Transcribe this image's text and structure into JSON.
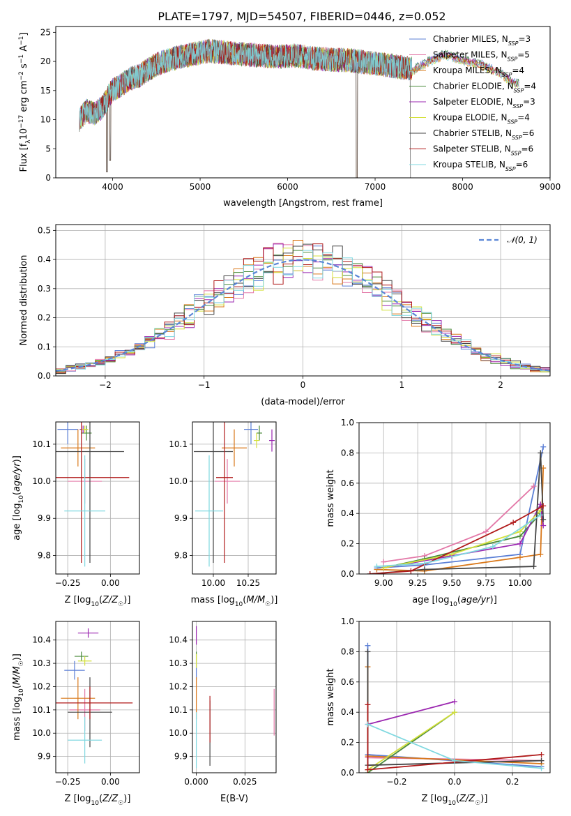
{
  "figure_title": "PLATE=1797, MJD=54507, FIBERID=0446, z=0.052",
  "colors": {
    "chabrier_miles": "#5b7fd6",
    "salpeter_miles": "#e377a7",
    "kroupa_miles": "#d9781a",
    "chabrier_elodie": "#4a8a3a",
    "salpeter_elodie": "#9b27b0",
    "kroupa_elodie": "#d4e03a",
    "chabrier_stelib": "#444444",
    "salpeter_stelib": "#b01a1a",
    "kroupa_stelib": "#7fd8e0",
    "normal_curve": "#5a86d6",
    "grid": "#b0b0b0"
  },
  "chart_data": [
    {
      "id": "spectrum",
      "type": "line",
      "xlabel": "wavelength [Angstrom, rest frame]",
      "ylabel": "Flux [f_λ10^-17 erg cm^-2 s^-1 A^-1]",
      "xlim": [
        3350,
        9000
      ],
      "ylim": [
        0,
        26
      ],
      "xticks": [
        4000,
        5000,
        6000,
        7000,
        8000,
        9000
      ],
      "yticks": [
        0,
        5,
        10,
        15,
        20,
        25
      ],
      "grid": false,
      "legend_position": "upper right",
      "legend": [
        {
          "label": "Chabrier MILES, N_SSP=3",
          "color_key": "chabrier_miles"
        },
        {
          "label": "Salpeter MILES, N_SSP=5",
          "color_key": "salpeter_miles"
        },
        {
          "label": "Kroupa MILES, N_SSP=4",
          "color_key": "kroupa_miles"
        },
        {
          "label": "Chabrier ELODIE, N_SSP=4",
          "color_key": "chabrier_elodie"
        },
        {
          "label": "Salpeter ELODIE, N_SSP=3",
          "color_key": "salpeter_elodie"
        },
        {
          "label": "Kroupa ELODIE, N_SSP=4",
          "color_key": "kroupa_elodie"
        },
        {
          "label": "Chabrier STELIB, N_SSP=6",
          "color_key": "chabrier_stelib"
        },
        {
          "label": "Salpeter STELIB, N_SSP=6",
          "color_key": "salpeter_stelib"
        },
        {
          "label": "Kroupa STELIB, N_SSP=6",
          "color_key": "kroupa_stelib"
        }
      ],
      "continuum": {
        "x": [
          3620,
          3700,
          3800,
          3900,
          3950,
          4000,
          4100,
          4200,
          4300,
          4400,
          4500,
          4700,
          4900,
          5100,
          5300,
          5500,
          5700,
          5900,
          6100,
          6300,
          6500,
          6700,
          6900,
          7100,
          7300,
          7400
        ],
        "y": [
          10,
          11.5,
          11,
          12.5,
          14,
          15,
          16,
          17,
          17.5,
          18.5,
          19.5,
          20.5,
          21.2,
          21.8,
          21.5,
          21.2,
          21,
          20.8,
          21,
          20.5,
          20.3,
          20.2,
          19.8,
          19.4,
          19,
          18.8
        ]
      },
      "dips": [
        {
          "x": 3935,
          "y": 1
        },
        {
          "x": 3970,
          "y": 3
        },
        {
          "x": 6790,
          "y": 0
        }
      ],
      "models_end": {
        "x": [
          7400,
          7600,
          7800,
          8000,
          8200,
          8400,
          8600
        ],
        "y": [
          18.5,
          20.2,
          21.5,
          20.5,
          19.8,
          18.5,
          16.5
        ]
      }
    },
    {
      "id": "residual_hist",
      "type": "histogram",
      "xlabel": "(data-model)/error",
      "ylabel": "Normed distribution",
      "xlim": [
        -2.5,
        2.5
      ],
      "ylim": [
        0,
        0.52
      ],
      "xticks": [
        -2,
        -1,
        0,
        1,
        2
      ],
      "yticks": [
        0.0,
        0.1,
        0.2,
        0.3,
        0.4,
        0.5
      ],
      "grid": true,
      "legend_position": "upper right",
      "legend": [
        {
          "label": "𝒩(0, 1)",
          "color_key": "normal_curve",
          "style": "dashed"
        }
      ],
      "bin_width": 0.1,
      "bins_start": -2.5,
      "bins_count": 50
    },
    {
      "id": "age_vs_Z",
      "type": "errorbar",
      "xlabel": "Z [log10(Z/Z☉)]",
      "ylabel": "age [log10(age/yr)]",
      "xlim": [
        -0.32,
        0.17
      ],
      "ylim": [
        9.75,
        10.16
      ],
      "xticks": [
        -0.25,
        0.0
      ],
      "yticks": [
        9.8,
        9.9,
        10.0,
        10.1
      ],
      "grid": true,
      "points": [
        {
          "color_key": "chabrier_miles",
          "x": -0.25,
          "y": 10.14,
          "xerr": 0.06,
          "yerr": 0.04
        },
        {
          "color_key": "salpeter_miles",
          "x": -0.15,
          "y": 10.0,
          "xerr": 0.1,
          "yerr": 0.06
        },
        {
          "color_key": "kroupa_miles",
          "x": -0.19,
          "y": 10.09,
          "xerr": 0.1,
          "yerr": 0.05
        },
        {
          "color_key": "chabrier_elodie",
          "x": -0.14,
          "y": 10.13,
          "xerr": 0.03,
          "yerr": 0.02
        },
        {
          "color_key": "salpeter_elodie",
          "x": -0.16,
          "y": 10.14,
          "xerr": 0.02,
          "yerr": 0.01
        },
        {
          "color_key": "kroupa_elodie",
          "x": -0.15,
          "y": 10.14,
          "xerr": 0.02,
          "yerr": 0.01
        },
        {
          "color_key": "chabrier_stelib",
          "x": -0.12,
          "y": 10.08,
          "xerr": 0.2,
          "yerr": 0.3
        },
        {
          "color_key": "salpeter_stelib",
          "x": -0.17,
          "y": 10.01,
          "xerr": 0.28,
          "yerr": 0.23
        },
        {
          "color_key": "kroupa_stelib",
          "x": -0.15,
          "y": 9.92,
          "xerr": 0.12,
          "yerr": 0.15
        }
      ]
    },
    {
      "id": "age_vs_mass",
      "type": "errorbar",
      "xlabel": "mass [log10(M/M☉)]",
      "ylabel": "",
      "xlim": [
        9.85,
        10.45
      ],
      "ylim": [
        9.75,
        10.16
      ],
      "xticks": [
        10.0,
        10.25
      ],
      "yticks": [
        9.8,
        9.9,
        10.0,
        10.1
      ],
      "grid": true,
      "points": [
        {
          "color_key": "chabrier_miles",
          "x": 10.27,
          "y": 10.14,
          "xerr": 0.05,
          "yerr": 0.04
        },
        {
          "color_key": "salpeter_miles",
          "x": 10.1,
          "y": 10.0,
          "xerr": 0.09,
          "yerr": 0.06
        },
        {
          "color_key": "kroupa_miles",
          "x": 10.15,
          "y": 10.09,
          "xerr": 0.09,
          "yerr": 0.05
        },
        {
          "color_key": "chabrier_elodie",
          "x": 10.33,
          "y": 10.13,
          "xerr": 0.02,
          "yerr": 0.02
        },
        {
          "color_key": "salpeter_elodie",
          "x": 10.42,
          "y": 10.11,
          "xerr": 0.02,
          "yerr": 0.03
        },
        {
          "color_key": "kroupa_elodie",
          "x": 10.31,
          "y": 10.11,
          "xerr": 0.02,
          "yerr": 0.02
        },
        {
          "color_key": "chabrier_stelib",
          "x": 10.0,
          "y": 10.08,
          "xerr": 0.14,
          "yerr": 0.3
        },
        {
          "color_key": "salpeter_stelib",
          "x": 10.08,
          "y": 10.01,
          "xerr": 0.06,
          "yerr": 0.23
        },
        {
          "color_key": "kroupa_stelib",
          "x": 9.97,
          "y": 9.92,
          "xerr": 0.1,
          "yerr": 0.15
        }
      ]
    },
    {
      "id": "weight_vs_age",
      "type": "line",
      "xlabel": "age [log10(age/yr)]",
      "ylabel": "mass weight",
      "xlim": [
        8.82,
        10.22
      ],
      "ylim": [
        0,
        1.0
      ],
      "xticks": [
        9.0,
        9.25,
        9.5,
        9.75,
        10.0
      ],
      "yticks": [
        0.0,
        0.2,
        0.4,
        0.6,
        0.8,
        1.0
      ],
      "grid": true,
      "series": [
        {
          "color_key": "chabrier_miles",
          "x": [
            8.95,
            9.3,
            10.0,
            10.17
          ],
          "y": [
            0.04,
            0.06,
            0.13,
            0.84
          ]
        },
        {
          "color_key": "salpeter_miles",
          "x": [
            9.0,
            9.3,
            9.75,
            10.1
          ],
          "y": [
            0.08,
            0.12,
            0.28,
            0.58
          ]
        },
        {
          "color_key": "kroupa_miles",
          "x": [
            8.95,
            9.3,
            10.0,
            10.15,
            10.17
          ],
          "y": [
            0.03,
            0.02,
            0.11,
            0.13,
            0.7
          ]
        },
        {
          "color_key": "chabrier_elodie",
          "x": [
            9.0,
            9.3,
            10.0,
            10.15
          ],
          "y": [
            0.04,
            0.1,
            0.25,
            0.4
          ]
        },
        {
          "color_key": "salpeter_elodie",
          "x": [
            9.0,
            9.5,
            10.0,
            10.15,
            10.17
          ],
          "y": [
            0.04,
            0.12,
            0.2,
            0.46,
            0.32
          ]
        },
        {
          "color_key": "kroupa_elodie",
          "x": [
            9.0,
            9.5,
            10.0,
            10.15
          ],
          "y": [
            0.04,
            0.13,
            0.28,
            0.42
          ]
        },
        {
          "color_key": "chabrier_stelib",
          "x": [
            8.9,
            9.3,
            10.1,
            10.15,
            10.17
          ],
          "y": [
            0.0,
            0.03,
            0.05,
            0.8,
            0.36
          ]
        },
        {
          "color_key": "salpeter_stelib",
          "x": [
            8.9,
            9.2,
            9.95,
            10.17
          ],
          "y": [
            0.0,
            0.02,
            0.34,
            0.45
          ]
        },
        {
          "color_key": "kroupa_stelib",
          "x": [
            8.95,
            9.3,
            9.8,
            10.15
          ],
          "y": [
            0.05,
            0.07,
            0.18,
            0.39
          ]
        }
      ]
    },
    {
      "id": "mass_vs_Z",
      "type": "errorbar",
      "xlabel": "Z [log10(Z/Z☉)]",
      "ylabel": "mass [log10(M/M☉)]",
      "xlim": [
        -0.32,
        0.17
      ],
      "ylim": [
        9.83,
        10.48
      ],
      "xticks": [
        -0.25,
        0.0
      ],
      "yticks": [
        9.9,
        10.0,
        10.1,
        10.2,
        10.3,
        10.4
      ],
      "grid": true,
      "points": [
        {
          "color_key": "chabrier_miles",
          "x": -0.21,
          "y": 10.27,
          "xerr": 0.06,
          "yerr": 0.04
        },
        {
          "color_key": "salpeter_miles",
          "x": -0.15,
          "y": 10.1,
          "xerr": 0.09,
          "yerr": 0.09
        },
        {
          "color_key": "kroupa_miles",
          "x": -0.19,
          "y": 10.15,
          "xerr": 0.1,
          "yerr": 0.09
        },
        {
          "color_key": "chabrier_elodie",
          "x": -0.17,
          "y": 10.33,
          "xerr": 0.04,
          "yerr": 0.02
        },
        {
          "color_key": "salpeter_elodie",
          "x": -0.13,
          "y": 10.43,
          "xerr": 0.06,
          "yerr": 0.02
        },
        {
          "color_key": "kroupa_elodie",
          "x": -0.15,
          "y": 10.31,
          "xerr": 0.04,
          "yerr": 0.02
        },
        {
          "color_key": "chabrier_stelib",
          "x": -0.12,
          "y": 10.09,
          "xerr": 0.13,
          "yerr": 0.15
        },
        {
          "color_key": "salpeter_stelib",
          "x": -0.12,
          "y": 10.13,
          "xerr": 0.25,
          "yerr": 0.07
        },
        {
          "color_key": "kroupa_stelib",
          "x": -0.15,
          "y": 9.97,
          "xerr": 0.1,
          "yerr": 0.1
        }
      ]
    },
    {
      "id": "mass_vs_ebv",
      "type": "errorbar",
      "xlabel": "E(B-V)",
      "ylabel": "",
      "xlim": [
        -0.002,
        0.041
      ],
      "ylim": [
        9.83,
        10.48
      ],
      "xticks": [
        0.0,
        0.025
      ],
      "yticks": [
        9.9,
        10.0,
        10.1,
        10.2,
        10.3,
        10.4
      ],
      "grid": true,
      "points": [
        {
          "color_key": "chabrier_miles",
          "x": 0.0,
          "y": 10.27,
          "xerr": 0,
          "yerr": 0.04
        },
        {
          "color_key": "salpeter_miles",
          "x": 0.04,
          "y": 10.09,
          "xerr": 0,
          "yerr": 0.1
        },
        {
          "color_key": "kroupa_miles",
          "x": 0.0,
          "y": 10.15,
          "xerr": 0,
          "yerr": 0.09
        },
        {
          "color_key": "chabrier_elodie",
          "x": 0.0,
          "y": 10.33,
          "xerr": 0,
          "yerr": 0.02
        },
        {
          "color_key": "salpeter_elodie",
          "x": 0.0,
          "y": 10.42,
          "xerr": 0,
          "yerr": 0.04
        },
        {
          "color_key": "kroupa_elodie",
          "x": 0.0,
          "y": 10.31,
          "xerr": 0,
          "yerr": 0.03
        },
        {
          "color_key": "chabrier_stelib",
          "x": 0.007,
          "y": 10.0,
          "xerr": 0,
          "yerr": 0.14
        },
        {
          "color_key": "salpeter_stelib",
          "x": 0.007,
          "y": 10.06,
          "xerr": 0,
          "yerr": 0.1
        },
        {
          "color_key": "kroupa_stelib",
          "x": 0.0,
          "y": 9.97,
          "xerr": 0,
          "yerr": 0.12
        }
      ]
    },
    {
      "id": "weight_vs_Z",
      "type": "line",
      "xlabel": "Z [log10(Z/Z☉)]",
      "ylabel": "mass weight",
      "xlim": [
        -0.33,
        0.33
      ],
      "ylim": [
        0,
        1.0
      ],
      "xticks": [
        -0.2,
        0.0,
        0.2
      ],
      "yticks": [
        0.0,
        0.2,
        0.4,
        0.6,
        0.8,
        1.0
      ],
      "grid": true,
      "series": [
        {
          "color_key": "chabrier_miles",
          "x": [
            -0.3,
            -0.3,
            0.3
          ],
          "y": [
            0.84,
            0.12,
            0.04
          ]
        },
        {
          "color_key": "salpeter_miles",
          "x": [
            -0.3,
            0.3
          ],
          "y": [
            0.1,
            0.08
          ]
        },
        {
          "color_key": "kroupa_miles",
          "x": [
            -0.3,
            -0.3,
            0.3
          ],
          "y": [
            0.7,
            0.11,
            0.06
          ]
        },
        {
          "color_key": "chabrier_elodie",
          "x": [
            -0.3,
            0.0
          ],
          "y": [
            0.0,
            0.4
          ]
        },
        {
          "color_key": "salpeter_elodie",
          "x": [
            -0.3,
            0.0
          ],
          "y": [
            0.32,
            0.47
          ]
        },
        {
          "color_key": "kroupa_elodie",
          "x": [
            -0.3,
            0.0
          ],
          "y": [
            0.02,
            0.4
          ]
        },
        {
          "color_key": "chabrier_stelib",
          "x": [
            -0.3,
            -0.3,
            0.3
          ],
          "y": [
            0.8,
            0.05,
            0.08
          ]
        },
        {
          "color_key": "salpeter_stelib",
          "x": [
            -0.3,
            -0.3,
            0.3
          ],
          "y": [
            0.45,
            0.02,
            0.12
          ]
        },
        {
          "color_key": "kroupa_stelib",
          "x": [
            -0.3,
            0.0,
            0.3
          ],
          "y": [
            0.32,
            0.08,
            0.03
          ]
        }
      ]
    }
  ]
}
